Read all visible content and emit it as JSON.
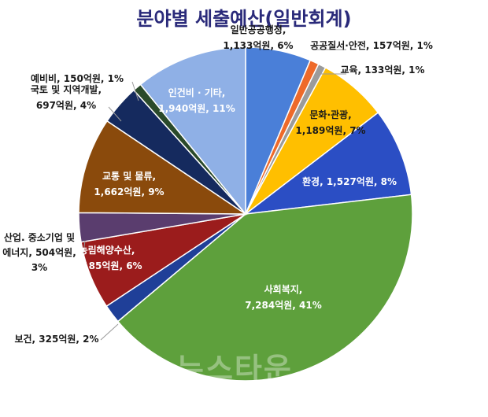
{
  "chart_data": {
    "type": "pie",
    "title": "분야별 세출예산(일반회계)",
    "unit": "억원",
    "slices": [
      {
        "label": "일반공공행정",
        "value": 1133,
        "value_text": "1,133억원",
        "percent": "6%",
        "color": "#4a7fd8"
      },
      {
        "label": "공공질서·안전",
        "value": 157,
        "value_text": "157억원",
        "percent": "1%",
        "color": "#ee6a2a"
      },
      {
        "label": "교육",
        "value": 133,
        "value_text": "133억원",
        "percent": "1%",
        "color": "#9b9b9b"
      },
      {
        "label": "문화·관광",
        "value": 1189,
        "value_text": "1,189억원",
        "percent": "7%",
        "color": "#ffbf00"
      },
      {
        "label": "환경",
        "value": 1527,
        "value_text": "1,527억원",
        "percent": "8%",
        "color": "#2b4ec4"
      },
      {
        "label": "사회복지",
        "value": 7284,
        "value_text": "7,284억원",
        "percent": "41%",
        "color": "#5ea03c"
      },
      {
        "label": "보건",
        "value": 325,
        "value_text": "325억원",
        "percent": "2%",
        "color": "#1f3f98"
      },
      {
        "label": "농림해양수산",
        "value": 1185,
        "value_text": "1,185억원",
        "percent": "6%",
        "color": "#9b1c1c"
      },
      {
        "label": "산업. 중소기업 및 에너지",
        "value": 504,
        "value_text": "504억원",
        "percent": "3%",
        "color": "#5a3d6e"
      },
      {
        "label": "교통 및 물류",
        "value": 1662,
        "value_text": "1,662억원",
        "percent": "9%",
        "color": "#8a4a0c"
      },
      {
        "label": "국토 및 지역개발",
        "value": 697,
        "value_text": "697억원",
        "percent": "4%",
        "color": "#152a5e"
      },
      {
        "label": "예비비",
        "value": 150,
        "value_text": "150억원",
        "percent": "1%",
        "color": "#2a4a2a"
      },
      {
        "label": "인건비 · 기타",
        "value": 1940,
        "value_text": "1,940억원",
        "percent": "11%",
        "color": "#8fb0e6"
      }
    ]
  },
  "watermark": "뉴스타운"
}
